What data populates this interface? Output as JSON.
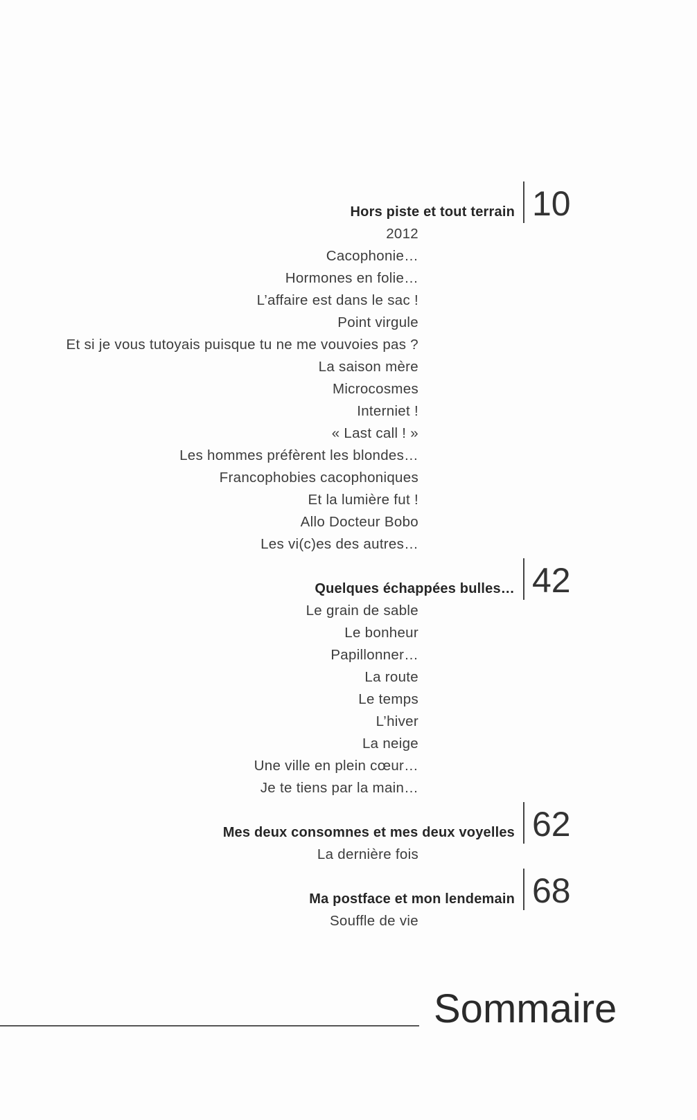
{
  "sections": [
    {
      "heading": "Hors piste et tout terrain",
      "page": "10",
      "items": [
        "2012",
        "Cacophonie…",
        "Hormones en folie…",
        "L’affaire est dans le sac !",
        "Point virgule",
        "Et si je vous tutoyais puisque tu ne me vouvoies pas ?",
        "La saison mère",
        "Microcosmes",
        "Interniet !",
        "« Last call ! »",
        "Les hommes préfèrent les blondes…",
        "Francophobies cacophoniques",
        "Et la lumière fut !",
        "Allo Docteur Bobo",
        "Les vi(c)es des autres…"
      ]
    },
    {
      "heading": "Quelques échappées bulles…",
      "page": "42",
      "items": [
        "Le grain de sable",
        "Le bonheur",
        "Papillonner…",
        "La route",
        "Le temps",
        "L’hiver",
        "La neige",
        "Une ville en plein cœur…",
        "Je te tiens par la main…"
      ]
    },
    {
      "heading": "Mes deux consomnes et mes deux voyelles",
      "page": "62",
      "items": [
        "La dernière fois"
      ]
    },
    {
      "heading": "Ma postface et mon lendemain",
      "page": "68",
      "items": [
        "Souffle de vie"
      ]
    }
  ],
  "title": "Sommaire"
}
